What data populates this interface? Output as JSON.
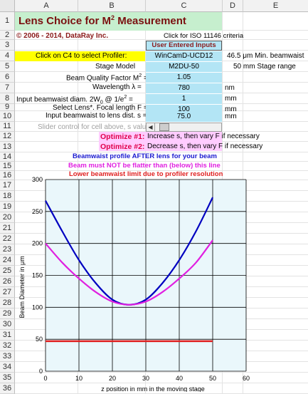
{
  "columns": [
    "A",
    "B",
    "C",
    "D",
    "E"
  ],
  "rows": [
    "1",
    "2",
    "3",
    "4",
    "5",
    "6",
    "7",
    "8",
    "9",
    "10",
    "11",
    "12",
    "13",
    "14",
    "15",
    "16",
    "17",
    "18",
    "19",
    "20",
    "21",
    "22",
    "23",
    "24",
    "25",
    "26",
    "27",
    "28",
    "29",
    "30",
    "31",
    "32",
    "33",
    "34",
    "35",
    "36"
  ],
  "title_prefix": "Lens Choice for M",
  "title_sup": "2",
  "title_suffix": " Measurement",
  "copyright": "© 2006 - 2014, DataRay Inc.",
  "iso_link": "Click for ISO 11146 criteria",
  "user_inputs_header": "User Entered Inputs",
  "profiler_prompt": "Click on C4 to select Profiler:",
  "profiler_value": "WinCamD-UCD12",
  "min_beamwaist": "46.5  μm Min. beamwaist",
  "stage_model_label": "Stage Model",
  "stage_model_value": "M2DU-50",
  "stage_range": "50  mm Stage range",
  "m2_label_a": "Beam Quality Factor  M",
  "m2_label_sup": "2",
  "m2_label_b": " =",
  "m2_value": "1.05",
  "wavelength_label": "Wavelength  λ =",
  "wavelength_value": "780",
  "wavelength_unit": "nm",
  "beamwaist_label_a": "Input beamwaist diam.  2W",
  "beamwaist_label_sub": "0",
  "beamwaist_label_b": " @ 1/e",
  "beamwaist_label_sup": "2",
  "beamwaist_label_c": " =",
  "beamwaist_value": "1",
  "beamwaist_unit": "mm",
  "focal_label": "Select Lens*. Focal length  F =",
  "focal_value": "100",
  "focal_unit": "mm",
  "dist_label": "Input beamwaist to lens dist. s =",
  "dist_value": "75.0",
  "dist_unit": "mm",
  "slider_label": "Slider control for cell above, s value",
  "opt1_label": "Optimize #1:",
  "opt1_text": "Increase s, then vary F if necessary",
  "opt2_label": "Optimize #2:",
  "opt2_text": "Decrease s, then vary F if necessary",
  "legend_blue": "Beamwaist profile AFTER lens for your beam",
  "legend_magenta": "Beam must NOT be flatter than (below) this line",
  "legend_red": "Lower beamwaist limit due to profiler resolution",
  "colors": {
    "blue": "#0000c0",
    "magenta": "#e020e0",
    "red": "#e02020",
    "plot_bg": "#eaf7fb",
    "input_bg": "#b3e5f5",
    "title_bg": "#c6efce"
  },
  "chart_data": {
    "type": "line",
    "title": "",
    "xlabel": "z position in mm in the moving stage",
    "ylabel": "Beam Diameter in μm",
    "xlim": [
      0,
      60
    ],
    "ylim": [
      0,
      300
    ],
    "xticks": [
      0,
      10,
      20,
      30,
      40,
      50,
      60
    ],
    "yticks": [
      0,
      50,
      100,
      150,
      200,
      250,
      300
    ],
    "grid": true,
    "series": [
      {
        "x": [
          0,
          5,
          10,
          15,
          20,
          25,
          30,
          35,
          40,
          45,
          50
        ],
        "values": [
          267,
          219,
          174,
          138,
          112,
          104,
          112,
          138,
          174,
          219,
          272
        ]
      },
      {
        "x": [
          0,
          5,
          10,
          15,
          20,
          25,
          30,
          35,
          40,
          45,
          50
        ],
        "values": [
          200,
          170,
          145,
          124,
          109,
          104,
          109,
          124,
          145,
          170,
          205
        ]
      },
      {
        "x": [
          0,
          50
        ],
        "values": [
          47,
          47
        ]
      }
    ]
  }
}
